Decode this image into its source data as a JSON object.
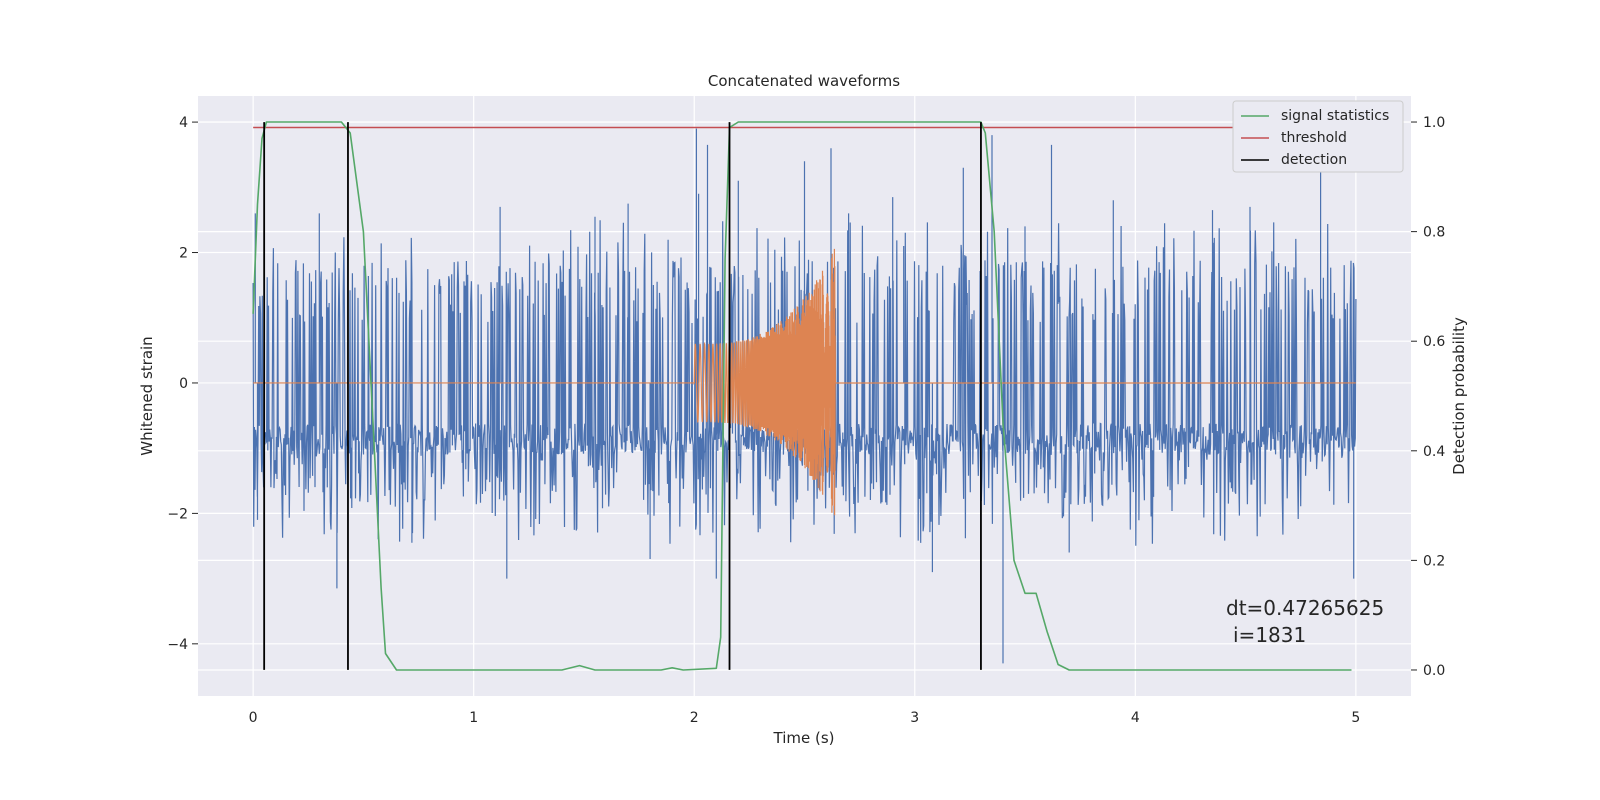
{
  "chart_data": {
    "type": "line",
    "title": "Concatenated waveforms",
    "xlabel": "Time (s)",
    "ylabel": "Whitened strain",
    "y2label": "Detection probability",
    "xlim": [
      -0.25,
      5.25
    ],
    "ylim": [
      -4.8,
      4.4
    ],
    "y2lim": [
      -0.0475,
      1.0475
    ],
    "grid": true,
    "legend_position": "top-right",
    "x_ticks": [
      0,
      1,
      2,
      3,
      4,
      5
    ],
    "x_tick_labels": [
      "0",
      "1",
      "2",
      "3",
      "4",
      "5"
    ],
    "y_ticks": [
      -4,
      -2,
      0,
      2,
      4
    ],
    "y_tick_labels": [
      "−4",
      "−2",
      "0",
      "2",
      "4"
    ],
    "y2_ticks": [
      0.0,
      0.2,
      0.4,
      0.6,
      0.8,
      1.0
    ],
    "y2_tick_labels": [
      "0.0",
      "0.2",
      "0.4",
      "0.6",
      "0.8",
      "1.0"
    ],
    "annotation": [
      "dt=0.47265625",
      "i=1831"
    ],
    "colors": {
      "strain": "#4c72b0",
      "injection": "#dd8452",
      "signal_statistics": "#55a868",
      "threshold": "#c44e52",
      "detection": "#000000",
      "axes_bg": "#eaeaf2",
      "grid": "#ffffff"
    },
    "series": [
      {
        "name": "whitened strain",
        "axis": "left",
        "color": "#4c72b0",
        "kind": "noise",
        "x_range": [
          0,
          5
        ],
        "typical_band": [
          -1.0,
          0.6
        ],
        "peaks": [
          [
            0.01,
            2.6
          ],
          [
            0.02,
            -2.1
          ],
          [
            0.3,
            2.6
          ],
          [
            0.38,
            -3.15
          ],
          [
            0.72,
            -2.45
          ],
          [
            1.12,
            2.7
          ],
          [
            1.15,
            -3.0
          ],
          [
            1.55,
            2.55
          ],
          [
            1.7,
            2.75
          ],
          [
            1.8,
            -2.7
          ],
          [
            2.01,
            3.9
          ],
          [
            2.02,
            2.9
          ],
          [
            2.06,
            3.65
          ],
          [
            2.1,
            -3.0
          ],
          [
            2.2,
            3.1
          ],
          [
            2.5,
            3.4
          ],
          [
            2.62,
            3.6
          ],
          [
            2.7,
            2.6
          ],
          [
            2.9,
            2.85
          ],
          [
            2.95,
            2.1
          ],
          [
            3.08,
            -2.9
          ],
          [
            3.22,
            3.3
          ],
          [
            3.35,
            3.8
          ],
          [
            3.4,
            -4.3
          ],
          [
            3.5,
            2.4
          ],
          [
            3.62,
            3.65
          ],
          [
            3.7,
            -2.6
          ],
          [
            3.9,
            2.8
          ],
          [
            4.35,
            2.65
          ],
          [
            4.52,
            2.7
          ],
          [
            4.84,
            3.5
          ],
          [
            4.99,
            -3.0
          ]
        ]
      },
      {
        "name": "injected waveform",
        "axis": "left",
        "color": "#4c72b0",
        "kind": "chirp",
        "x_range": [
          2.0,
          2.64
        ],
        "amplitude_start": 0.6,
        "amplitude_end": 2.1,
        "injection_color": "#dd8452"
      },
      {
        "name": "signal statistics",
        "axis": "right",
        "color": "#55a868",
        "x": [
          0.0,
          0.02,
          0.04,
          0.06,
          0.1,
          0.4,
          0.44,
          0.5,
          0.55,
          0.58,
          0.6,
          0.65,
          1.4,
          1.48,
          1.55,
          1.85,
          1.9,
          1.95,
          2.1,
          2.12,
          2.14,
          2.16,
          2.2,
          3.3,
          3.32,
          3.36,
          3.4,
          3.45,
          3.5,
          3.55,
          3.6,
          3.65,
          3.7,
          4.0,
          4.5,
          4.98
        ],
        "y": [
          0.65,
          0.85,
          0.97,
          1.0,
          1.0,
          1.0,
          0.98,
          0.8,
          0.4,
          0.15,
          0.03,
          0.0,
          0.0,
          0.008,
          0.0,
          0.0,
          0.004,
          0.0,
          0.003,
          0.06,
          0.75,
          0.99,
          1.0,
          1.0,
          0.98,
          0.8,
          0.45,
          0.2,
          0.14,
          0.14,
          0.07,
          0.01,
          0.0,
          0.0,
          0.0,
          0.0
        ]
      },
      {
        "name": "threshold",
        "axis": "right",
        "color": "#c44e52",
        "x": [
          0,
          5
        ],
        "y": [
          0.99,
          0.99
        ]
      },
      {
        "name": "detection",
        "axis": "left",
        "color": "#000000",
        "kind": "vlines",
        "x": [
          0.05,
          0.43,
          2.16,
          3.3
        ],
        "ymin": -4.4,
        "ymax": 4.0
      }
    ],
    "legend": [
      {
        "label": "signal statistics",
        "color": "#55a868"
      },
      {
        "label": "threshold",
        "color": "#c44e52"
      },
      {
        "label": "detection",
        "color": "#000000"
      }
    ]
  }
}
